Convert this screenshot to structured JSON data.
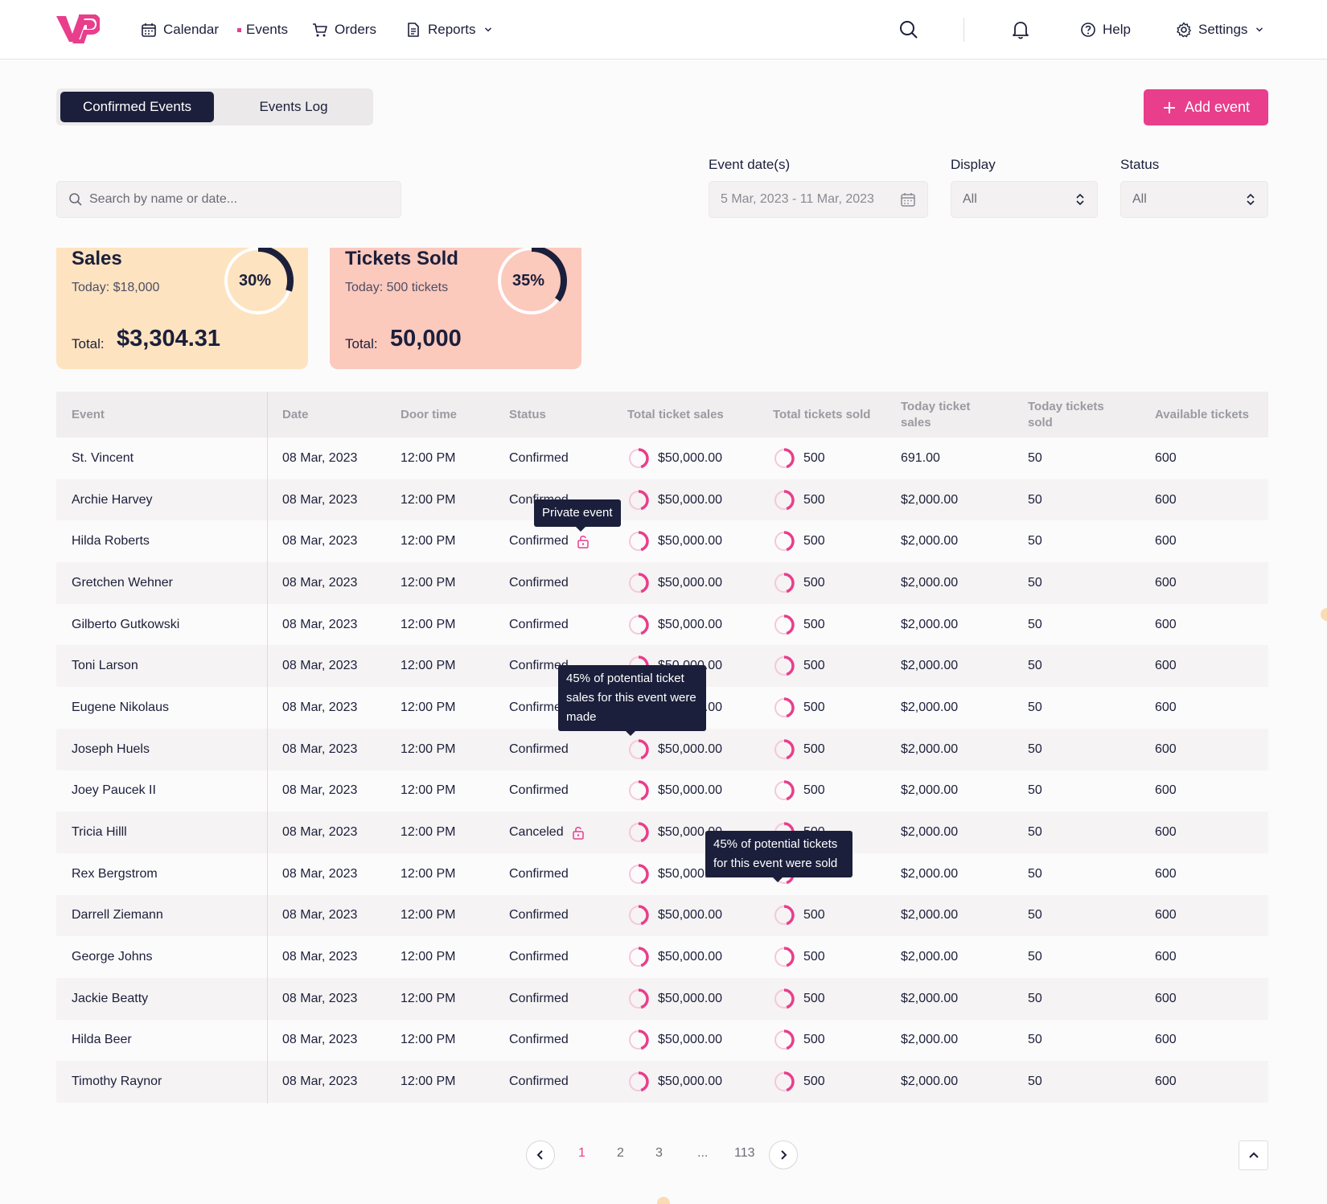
{
  "nav": {
    "calendar": "Calendar",
    "events": "Events",
    "orders": "Orders",
    "reports": "Reports",
    "help": "Help",
    "settings": "Settings"
  },
  "tabs": {
    "confirmed": "Confirmed Events",
    "log": "Events Log"
  },
  "add_event": "Add event",
  "filters": {
    "search_placeholder": "Search by name or date...",
    "date_label": "Event date(s)",
    "date_value": "5 Mar, 2023 - 11 Mar, 2023",
    "display_label": "Display",
    "display_value": "All",
    "status_label": "Status",
    "status_value": "All"
  },
  "cards": {
    "sales": {
      "title": "Sales",
      "today": "Today: $18,000",
      "total_label": "Total:",
      "total": "$3,304.31",
      "percent": "30%",
      "percent_value": 30,
      "bg": "#fde3c0"
    },
    "tickets": {
      "title": "Tickets Sold",
      "today": "Today: 500 tickets",
      "total_label": "Total:",
      "total": "50,000",
      "percent": "35%",
      "percent_value": 35,
      "bg": "#fcc9bd"
    }
  },
  "table": {
    "headers": [
      "Event",
      "Date",
      "Door time",
      "Status",
      "Total ticket sales",
      "Total tickets sold",
      "Today ticket sales",
      "Today tickets sold",
      "Available tickets"
    ],
    "rows": [
      {
        "event": "St. Vincent",
        "date": "08 Mar, 2023",
        "door": "12:00 PM",
        "status": "Confirmed",
        "sales": "$50,000.00",
        "sold": "500",
        "today_sales": "691.00",
        "today_sold": "50",
        "available": "600",
        "lock": false
      },
      {
        "event": "Archie Harvey",
        "date": "08 Mar, 2023",
        "door": "12:00 PM",
        "status": "Confirmed",
        "sales": "$50,000.00",
        "sold": "500",
        "today_sales": "$2,000.00",
        "today_sold": "50",
        "available": "600",
        "lock": false
      },
      {
        "event": "Hilda Roberts",
        "date": "08 Mar, 2023",
        "door": "12:00 PM",
        "status": "Confirmed",
        "sales": "$50,000.00",
        "sold": "500",
        "today_sales": "$2,000.00",
        "today_sold": "50",
        "available": "600",
        "lock": true
      },
      {
        "event": "Gretchen Wehner",
        "date": "08 Mar, 2023",
        "door": "12:00 PM",
        "status": "Confirmed",
        "sales": "$50,000.00",
        "sold": "500",
        "today_sales": "$2,000.00",
        "today_sold": "50",
        "available": "600",
        "lock": false
      },
      {
        "event": "Gilberto Gutkowski",
        "date": "08 Mar, 2023",
        "door": "12:00 PM",
        "status": "Confirmed",
        "sales": "$50,000.00",
        "sold": "500",
        "today_sales": "$2,000.00",
        "today_sold": "50",
        "available": "600",
        "lock": false
      },
      {
        "event": "Toni Larson",
        "date": "08 Mar, 2023",
        "door": "12:00 PM",
        "status": "Confirmed",
        "sales": "$50,000.00",
        "sold": "500",
        "today_sales": "$2,000.00",
        "today_sold": "50",
        "available": "600",
        "lock": false
      },
      {
        "event": "Eugene Nikolaus",
        "date": "08 Mar, 2023",
        "door": "12:00 PM",
        "status": "Confirmed",
        "sales": "$50,000.00",
        "sold": "500",
        "today_sales": "$2,000.00",
        "today_sold": "50",
        "available": "600",
        "lock": false
      },
      {
        "event": "Joseph Huels",
        "date": "08 Mar, 2023",
        "door": "12:00 PM",
        "status": "Confirmed",
        "sales": "$50,000.00",
        "sold": "500",
        "today_sales": "$2,000.00",
        "today_sold": "50",
        "available": "600",
        "lock": false
      },
      {
        "event": "Joey Paucek II",
        "date": "08 Mar, 2023",
        "door": "12:00 PM",
        "status": "Confirmed",
        "sales": "$50,000.00",
        "sold": "500",
        "today_sales": "$2,000.00",
        "today_sold": "50",
        "available": "600",
        "lock": false
      },
      {
        "event": "Tricia Hilll",
        "date": "08 Mar, 2023",
        "door": "12:00 PM",
        "status": "Canceled",
        "sales": "$50,000.00",
        "sold": "500",
        "today_sales": "$2,000.00",
        "today_sold": "50",
        "available": "600",
        "lock": true
      },
      {
        "event": "Rex Bergstrom",
        "date": "08 Mar, 2023",
        "door": "12:00 PM",
        "status": "Confirmed",
        "sales": "$50,000.00",
        "sold": "500",
        "today_sales": "$2,000.00",
        "today_sold": "50",
        "available": "600",
        "lock": false
      },
      {
        "event": "Darrell Ziemann",
        "date": "08 Mar, 2023",
        "door": "12:00 PM",
        "status": "Confirmed",
        "sales": "$50,000.00",
        "sold": "500",
        "today_sales": "$2,000.00",
        "today_sold": "50",
        "available": "600",
        "lock": false
      },
      {
        "event": "George Johns",
        "date": "08 Mar, 2023",
        "door": "12:00 PM",
        "status": "Confirmed",
        "sales": "$50,000.00",
        "sold": "500",
        "today_sales": "$2,000.00",
        "today_sold": "50",
        "available": "600",
        "lock": false
      },
      {
        "event": "Jackie Beatty",
        "date": "08 Mar, 2023",
        "door": "12:00 PM",
        "status": "Confirmed",
        "sales": "$50,000.00",
        "sold": "500",
        "today_sales": "$2,000.00",
        "today_sold": "50",
        "available": "600",
        "lock": false
      },
      {
        "event": "Hilda Beer",
        "date": "08 Mar, 2023",
        "door": "12:00 PM",
        "status": "Confirmed",
        "sales": "$50,000.00",
        "sold": "500",
        "today_sales": "$2,000.00",
        "today_sold": "50",
        "available": "600",
        "lock": false
      },
      {
        "event": "Timothy Raynor",
        "date": "08 Mar, 2023",
        "door": "12:00 PM",
        "status": "Confirmed",
        "sales": "$50,000.00",
        "sold": "500",
        "today_sales": "$2,000.00",
        "today_sold": "50",
        "available": "600",
        "lock": false
      }
    ]
  },
  "tooltips": {
    "private": "Private event",
    "sales": "45% of potential ticket sales for this event were made",
    "tickets": "45% of potential tickets for this event were sold"
  },
  "pagination": {
    "pages": [
      "1",
      "2",
      "3",
      "...",
      "113"
    ],
    "current": "1"
  },
  "colors": {
    "accent": "#e83e8c",
    "navy": "#1b1f3b"
  }
}
